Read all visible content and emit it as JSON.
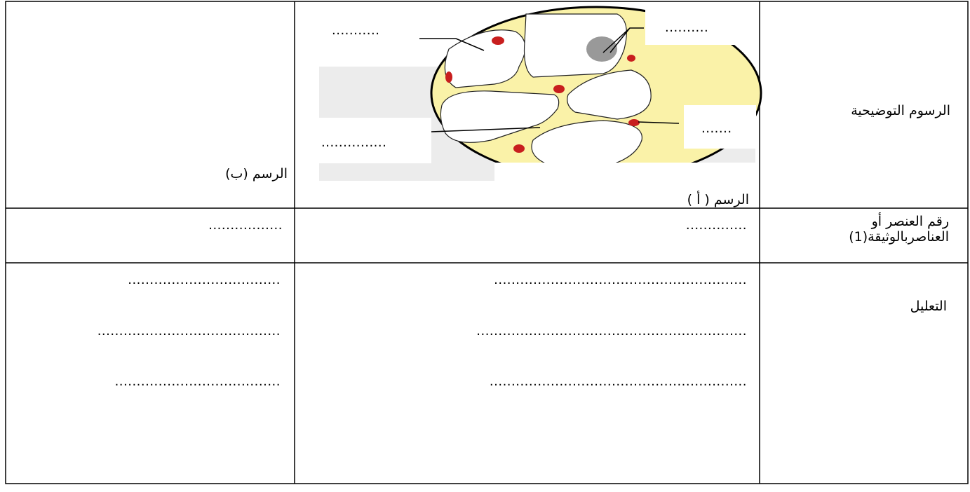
{
  "table": {
    "row_labels": {
      "illustrations": "الرسوم التوضيحية",
      "element_number": [
        "رقم العنصر   أو",
        "العناصربالوثيقة(1)"
      ],
      "justification": "التعليل"
    },
    "figure_a": {
      "caption": "الرسم ( أ )",
      "blanks": [
        "...........",
        "..........",
        ".......",
        "..............."
      ]
    },
    "figure_b": {
      "caption": "الرسم (ب)"
    },
    "element_number": {
      "a": "..............",
      "b": "................."
    },
    "justification": {
      "a": [
        "..........................................................",
        "..............................................................",
        "..........................................................."
      ],
      "b": [
        "...................................",
        "..........................................",
        "......................................"
      ]
    }
  }
}
